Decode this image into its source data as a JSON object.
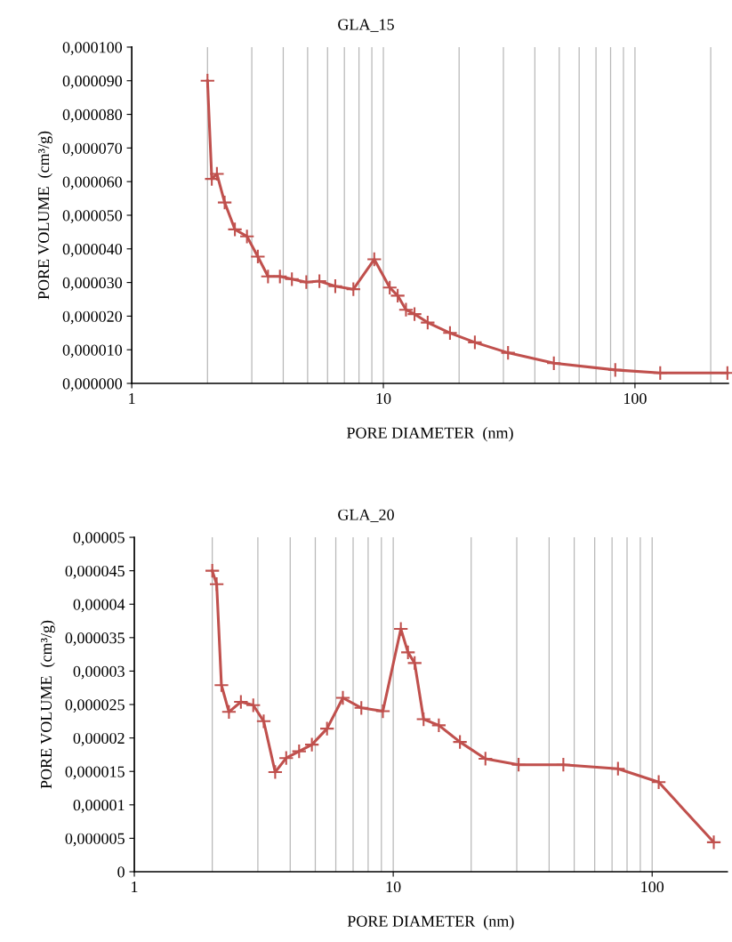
{
  "chart_data": [
    {
      "type": "line",
      "title": "GLA_15",
      "xlabel": "PORE DIAMETER  (nm)",
      "ylabel": "PORE VOLUME  (cm³/g)",
      "log": "x",
      "grid": "x",
      "marker": "cross",
      "line_style": "solid",
      "xlim": [
        1,
        235
      ],
      "ylim": [
        0,
        0.0001
      ],
      "xticks": [
        1,
        {
          "value": 2,
          "label": null
        },
        {
          "value": 3,
          "label": null
        },
        {
          "value": 4,
          "label": null
        },
        {
          "value": 5,
          "label": null
        },
        {
          "value": 6,
          "label": null
        },
        {
          "value": 7,
          "label": null
        },
        {
          "value": 8,
          "label": null
        },
        {
          "value": 9,
          "label": null
        },
        10,
        {
          "value": 20,
          "label": null
        },
        {
          "value": 30,
          "label": null
        },
        {
          "value": 40,
          "label": null
        },
        {
          "value": 50,
          "label": null
        },
        {
          "value": 60,
          "label": null
        },
        {
          "value": 70,
          "label": null
        },
        {
          "value": 80,
          "label": null
        },
        {
          "value": 90,
          "label": null
        },
        100,
        {
          "value": 200,
          "label": null
        }
      ],
      "yticks": [
        {
          "value": 0,
          "label": "0,000000"
        },
        {
          "value": 1e-05,
          "label": "0,000010"
        },
        {
          "value": 2e-05,
          "label": "0,000020"
        },
        {
          "value": 3e-05,
          "label": "0,000030"
        },
        {
          "value": 4e-05,
          "label": "0,000040"
        },
        {
          "value": 5e-05,
          "label": "0,000050"
        },
        {
          "value": 6e-05,
          "label": "0,000060"
        },
        {
          "value": 7e-05,
          "label": "0,000070"
        },
        {
          "value": 8e-05,
          "label": "0,000080"
        },
        {
          "value": 9e-05,
          "label": "0,000090"
        },
        {
          "value": 0.0001,
          "label": "0,000100"
        }
      ],
      "series": [
        {
          "color": "#c0504d",
          "x": [
            2.0,
            2.08,
            2.18,
            2.34,
            2.57,
            2.87,
            3.17,
            3.48,
            3.88,
            4.33,
            4.94,
            5.57,
            6.44,
            7.6,
            9.2,
            10.6,
            11.4,
            12.3,
            13.3,
            15.0,
            18.4,
            23.1,
            31.3,
            47.6,
            83.5,
            126,
            233
          ],
          "values": [
            9e-05,
            6.08e-05,
            6.23e-05,
            5.38e-05,
            4.58e-05,
            4.37e-05,
            3.77e-05,
            3.18e-05,
            3.18e-05,
            3.1e-05,
            3.01e-05,
            3.04e-05,
            2.89e-05,
            2.8e-05,
            3.69e-05,
            2.85e-05,
            2.61e-05,
            2.19e-05,
            2.06e-05,
            1.81e-05,
            1.5e-05,
            1.22e-05,
            9.1e-06,
            6e-06,
            4e-06,
            3.1e-06,
            3.1e-06
          ]
        }
      ]
    },
    {
      "type": "line",
      "title": "GLA_20",
      "xlabel": "PORE DIAMETER  (nm)",
      "ylabel": "PORE VOLUME  (cm³/g)",
      "log": "x",
      "grid": "x",
      "marker": "cross",
      "line_style": "solid",
      "xlim": [
        1,
        195
      ],
      "ylim": [
        0,
        5e-05
      ],
      "xticks": [
        1,
        {
          "value": 2,
          "label": null
        },
        {
          "value": 3,
          "label": null
        },
        {
          "value": 4,
          "label": null
        },
        {
          "value": 5,
          "label": null
        },
        {
          "value": 6,
          "label": null
        },
        {
          "value": 7,
          "label": null
        },
        {
          "value": 8,
          "label": null
        },
        {
          "value": 9,
          "label": null
        },
        10,
        {
          "value": 20,
          "label": null
        },
        {
          "value": 30,
          "label": null
        },
        {
          "value": 40,
          "label": null
        },
        {
          "value": 50,
          "label": null
        },
        {
          "value": 60,
          "label": null
        },
        {
          "value": 70,
          "label": null
        },
        {
          "value": 80,
          "label": null
        },
        {
          "value": 90,
          "label": null
        },
        100
      ],
      "yticks": [
        0,
        {
          "value": 5e-06,
          "label": "0,000005"
        },
        {
          "value": 1e-05,
          "label": "0,00001"
        },
        {
          "value": 1.5e-05,
          "label": "0,000015"
        },
        {
          "value": 2e-05,
          "label": "0,00002"
        },
        {
          "value": 2.5e-05,
          "label": "0,000025"
        },
        {
          "value": 3e-05,
          "label": "0,00003"
        },
        {
          "value": 3.5e-05,
          "label": "0,000035"
        },
        {
          "value": 4e-05,
          "label": "0,00004"
        },
        {
          "value": 4.5e-05,
          "label": "0,000045"
        },
        {
          "value": 5e-05,
          "label": "0,00005"
        }
      ],
      "series": [
        {
          "color": "#c0504d",
          "x": [
            2.0,
            2.08,
            2.17,
            2.32,
            2.58,
            2.88,
            3.16,
            3.5,
            3.86,
            4.33,
            4.85,
            5.55,
            6.39,
            7.53,
            9.12,
            10.7,
            11.4,
            12.1,
            13.1,
            15.0,
            18.1,
            22.7,
            30.5,
            45.4,
            73.8,
            106,
            173
          ],
          "values": [
            4.5e-05,
            4.3e-05,
            2.79e-05,
            2.39e-05,
            2.54e-05,
            2.49e-05,
            2.25e-05,
            1.49e-05,
            1.7e-05,
            1.8e-05,
            1.9e-05,
            2.14e-05,
            2.6e-05,
            2.45e-05,
            2.4e-05,
            3.63e-05,
            3.28e-05,
            3.12e-05,
            2.28e-05,
            2.19e-05,
            1.94e-05,
            1.69e-05,
            1.6e-05,
            1.6e-05,
            1.54e-05,
            1.34e-05,
            4.4e-06
          ]
        }
      ]
    }
  ]
}
